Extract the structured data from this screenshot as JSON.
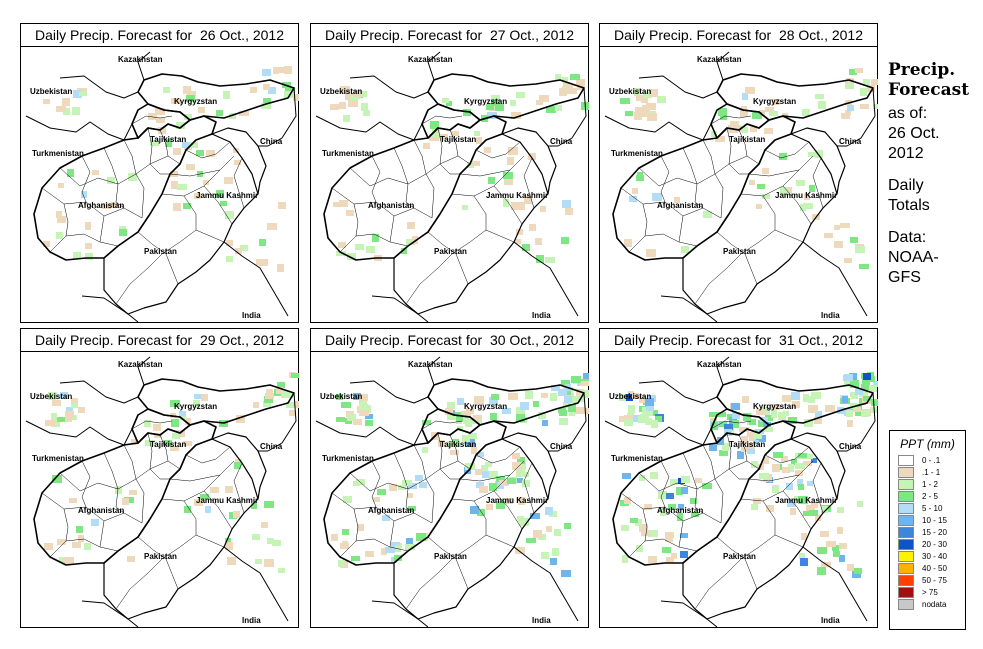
{
  "panels": [
    {
      "title": "Daily Precip. Forecast for  26 Oct., 2012",
      "intensity": "low"
    },
    {
      "title": "Daily Precip. Forecast for  27 Oct., 2012",
      "intensity": "low"
    },
    {
      "title": "Daily Precip. Forecast for  28 Oct., 2012",
      "intensity": "low"
    },
    {
      "title": "Daily Precip. Forecast for  29 Oct., 2012",
      "intensity": "low"
    },
    {
      "title": "Daily Precip. Forecast for  30 Oct., 2012",
      "intensity": "medium"
    },
    {
      "title": "Daily Precip. Forecast for  31 Oct., 2012",
      "intensity": "high"
    }
  ],
  "map_labels": {
    "kazakhstan": "Kazakhstan",
    "uzbekistan": "Uzbekistan",
    "kyrgyzstan": "Kyrgyzstan",
    "tajikistan": "Tajikistan",
    "china": "China",
    "turkmenistan": "Turkmenistan",
    "afghanistan": "Afghanistan",
    "jammu_kashmir": "Jammu Kashmir",
    "pakistan": "Pakistan",
    "india": "India"
  },
  "sidebar": {
    "title_line1": "Precip.",
    "title_line2": "Forecast",
    "asof_line1": "as of:",
    "asof_line2": "26 Oct.",
    "asof_line3": "2012",
    "totals_line1": "Daily",
    "totals_line2": "Totals",
    "data_line1": "Data:",
    "data_line2": "NOAA-",
    "data_line3": "GFS"
  },
  "legend": {
    "title": "PPT (mm)",
    "entries": [
      {
        "label": "0 - .1",
        "color": "#ffffff"
      },
      {
        "label": ".1 - 1",
        "color": "#eed9bd"
      },
      {
        "label": "1 - 2",
        "color": "#c5f4b6"
      },
      {
        "label": "2 - 5",
        "color": "#7ee683"
      },
      {
        "label": "5 - 10",
        "color": "#b3ddf6"
      },
      {
        "label": "10 - 15",
        "color": "#6fb5ec"
      },
      {
        "label": "15 - 20",
        "color": "#3c86dc"
      },
      {
        "label": "20 - 30",
        "color": "#1052c8"
      },
      {
        "label": "30 - 40",
        "color": "#fff200"
      },
      {
        "label": "40 - 50",
        "color": "#ffb000"
      },
      {
        "label": "50 - 75",
        "color": "#ff4000"
      },
      {
        "label": "> 75",
        "color": "#a01010"
      },
      {
        "label": "nodata",
        "color": "#c8c8c8"
      }
    ]
  }
}
